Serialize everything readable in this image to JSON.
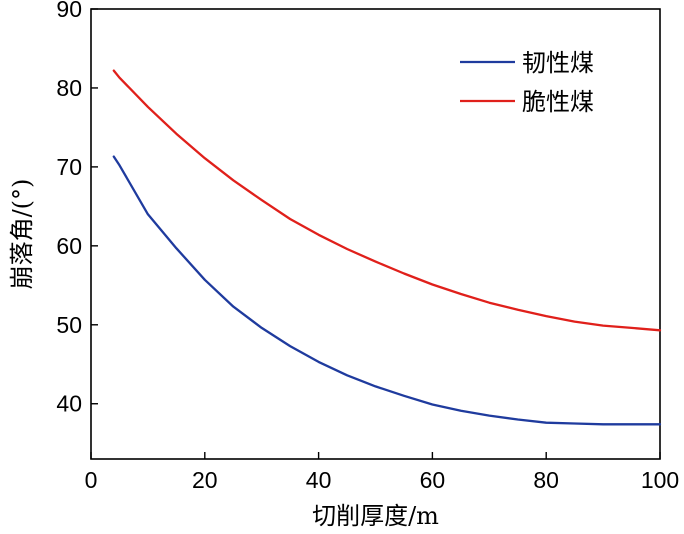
{
  "chart_data": {
    "type": "line",
    "xlabel": "切削厚度/m",
    "ylabel": "崩落角/(°)",
    "xlim": [
      0,
      100
    ],
    "ylim": [
      33,
      90
    ],
    "x_ticks": [
      0,
      20,
      40,
      60,
      80,
      100
    ],
    "y_ticks": [
      40,
      50,
      60,
      70,
      80,
      90
    ],
    "grid": false,
    "legend_position": "top-right",
    "series": [
      {
        "name": "韧性煤",
        "color": "#1f3b9e",
        "x": [
          4,
          5,
          10,
          15,
          20,
          25,
          30,
          35,
          40,
          45,
          50,
          55,
          60,
          65,
          70,
          75,
          80,
          85,
          90,
          95,
          100
        ],
        "values": [
          71.3,
          70.2,
          64.0,
          59.7,
          55.7,
          52.3,
          49.6,
          47.3,
          45.3,
          43.6,
          42.2,
          41.0,
          39.9,
          39.1,
          38.5,
          38.0,
          37.6,
          37.5,
          37.4,
          37.4,
          37.4
        ]
      },
      {
        "name": "脆性煤",
        "color": "#e0201b",
        "x": [
          4,
          5,
          10,
          15,
          20,
          25,
          30,
          35,
          40,
          45,
          50,
          55,
          60,
          65,
          70,
          75,
          80,
          85,
          90,
          95,
          100
        ],
        "values": [
          82.2,
          81.3,
          77.6,
          74.2,
          71.1,
          68.3,
          65.8,
          63.4,
          61.4,
          59.6,
          58.0,
          56.5,
          55.1,
          53.9,
          52.8,
          51.9,
          51.1,
          50.4,
          49.9,
          49.6,
          49.3
        ]
      }
    ]
  }
}
